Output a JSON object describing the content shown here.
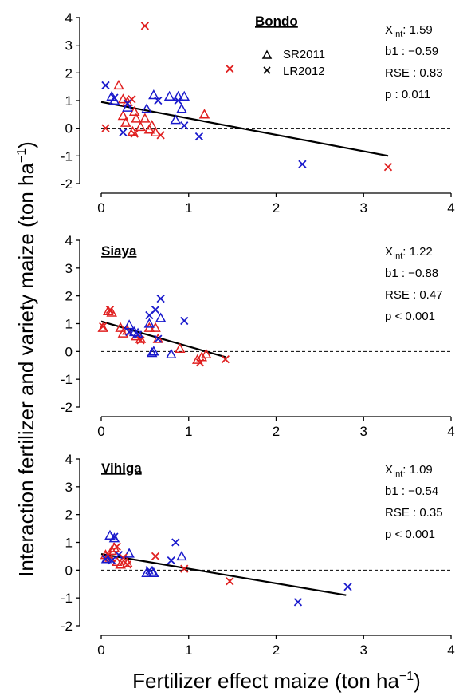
{
  "figure": {
    "xlabel_main": "Fertilizer effect maize (ton ha",
    "xlabel_sup": "−1",
    "xlabel_end": ")",
    "ylabel_main": "Interaction fertilizer and variety maize (ton ha",
    "ylabel_sup": "−1",
    "ylabel_end": ")"
  },
  "legend": {
    "entries": [
      {
        "label": "SR2011",
        "marker": "triangle"
      },
      {
        "label": "LR2012",
        "marker": "cross"
      }
    ]
  },
  "colors": {
    "series_a": "#e02020",
    "series_b": "#1a1acc",
    "axis": "#000000"
  },
  "chart_data": [
    {
      "type": "scatter",
      "site": "Bondo",
      "stats": {
        "xint_sym": "X",
        "xint_sub": "Int",
        "xint_val": ": 1.59",
        "b1": "b1 : −0.59",
        "rse": "RSE : 0.83",
        "p": "p : 0.011"
      },
      "xlim": [
        0,
        4
      ],
      "ylim": [
        -2,
        4
      ],
      "xticks": [
        0,
        1,
        2,
        3,
        4
      ],
      "yticks": [
        -2,
        -1,
        0,
        1,
        2,
        3,
        4
      ],
      "fit": {
        "x": [
          0,
          3.28
        ],
        "y": [
          0.95,
          -1.0
        ]
      },
      "points": [
        {
          "x": 0.2,
          "y": 1.55,
          "m": "t",
          "c": "r"
        },
        {
          "x": 0.25,
          "y": 1.05,
          "m": "t",
          "c": "r"
        },
        {
          "x": 0.3,
          "y": 0.95,
          "m": "t",
          "c": "r"
        },
        {
          "x": 0.25,
          "y": 0.45,
          "m": "t",
          "c": "r"
        },
        {
          "x": 0.28,
          "y": 0.2,
          "m": "t",
          "c": "r"
        },
        {
          "x": 0.38,
          "y": 0.6,
          "m": "t",
          "c": "r"
        },
        {
          "x": 0.4,
          "y": 0.35,
          "m": "t",
          "c": "r"
        },
        {
          "x": 0.45,
          "y": 0.05,
          "m": "t",
          "c": "r"
        },
        {
          "x": 0.5,
          "y": 0.35,
          "m": "t",
          "c": "r"
        },
        {
          "x": 0.55,
          "y": -0.05,
          "m": "t",
          "c": "r"
        },
        {
          "x": 0.62,
          "y": -0.15,
          "m": "t",
          "c": "r"
        },
        {
          "x": 0.58,
          "y": 0.1,
          "m": "t",
          "c": "r"
        },
        {
          "x": 1.18,
          "y": 0.5,
          "m": "t",
          "c": "r"
        },
        {
          "x": 0.36,
          "y": -0.12,
          "m": "t",
          "c": "r"
        },
        {
          "x": 0.12,
          "y": 1.15,
          "m": "t",
          "c": "b"
        },
        {
          "x": 0.15,
          "y": 1.0,
          "m": "t",
          "c": "b"
        },
        {
          "x": 0.3,
          "y": 0.75,
          "m": "t",
          "c": "b"
        },
        {
          "x": 0.52,
          "y": 0.7,
          "m": "t",
          "c": "b"
        },
        {
          "x": 0.6,
          "y": 1.2,
          "m": "t",
          "c": "b"
        },
        {
          "x": 0.78,
          "y": 1.15,
          "m": "t",
          "c": "b"
        },
        {
          "x": 0.88,
          "y": 1.15,
          "m": "t",
          "c": "b"
        },
        {
          "x": 0.92,
          "y": 0.7,
          "m": "t",
          "c": "b"
        },
        {
          "x": 0.85,
          "y": 0.3,
          "m": "t",
          "c": "b"
        },
        {
          "x": 0.95,
          "y": 1.15,
          "m": "t",
          "c": "b"
        },
        {
          "x": 0.5,
          "y": 3.7,
          "m": "x",
          "c": "r"
        },
        {
          "x": 1.47,
          "y": 2.15,
          "m": "x",
          "c": "r"
        },
        {
          "x": 0.05,
          "y": 0.0,
          "m": "x",
          "c": "r"
        },
        {
          "x": 0.35,
          "y": 1.05,
          "m": "x",
          "c": "r"
        },
        {
          "x": 0.38,
          "y": -0.2,
          "m": "x",
          "c": "r"
        },
        {
          "x": 0.68,
          "y": -0.25,
          "m": "x",
          "c": "r"
        },
        {
          "x": 3.28,
          "y": -1.4,
          "m": "x",
          "c": "r"
        },
        {
          "x": 0.05,
          "y": 1.55,
          "m": "x",
          "c": "b"
        },
        {
          "x": 0.15,
          "y": 1.1,
          "m": "x",
          "c": "b"
        },
        {
          "x": 0.25,
          "y": -0.15,
          "m": "x",
          "c": "b"
        },
        {
          "x": 0.3,
          "y": 0.9,
          "m": "x",
          "c": "b"
        },
        {
          "x": 0.65,
          "y": 1.0,
          "m": "x",
          "c": "b"
        },
        {
          "x": 0.88,
          "y": 1.0,
          "m": "x",
          "c": "b"
        },
        {
          "x": 0.95,
          "y": 0.1,
          "m": "x",
          "c": "b"
        },
        {
          "x": 1.12,
          "y": -0.3,
          "m": "x",
          "c": "b"
        },
        {
          "x": 2.3,
          "y": -1.3,
          "m": "x",
          "c": "b"
        }
      ]
    },
    {
      "type": "scatter",
      "site": "Siaya",
      "stats": {
        "xint_sym": "X",
        "xint_sub": "Int",
        "xint_val": ": 1.22",
        "b1": "b1 : −0.88",
        "rse": "RSE : 0.47",
        "p": "p < 0.001"
      },
      "xlim": [
        0,
        4
      ],
      "ylim": [
        -2,
        4
      ],
      "xticks": [
        0,
        1,
        2,
        3,
        4
      ],
      "yticks": [
        -2,
        -1,
        0,
        1,
        2,
        3,
        4
      ],
      "fit": {
        "x": [
          0,
          1.42
        ],
        "y": [
          1.08,
          -0.2
        ]
      },
      "points": [
        {
          "x": 0.02,
          "y": 0.85,
          "m": "t",
          "c": "r"
        },
        {
          "x": 0.08,
          "y": 1.45,
          "m": "t",
          "c": "r"
        },
        {
          "x": 0.12,
          "y": 1.4,
          "m": "t",
          "c": "r"
        },
        {
          "x": 0.22,
          "y": 0.85,
          "m": "t",
          "c": "r"
        },
        {
          "x": 0.25,
          "y": 0.65,
          "m": "t",
          "c": "r"
        },
        {
          "x": 0.3,
          "y": 0.75,
          "m": "t",
          "c": "r"
        },
        {
          "x": 0.4,
          "y": 0.55,
          "m": "t",
          "c": "r"
        },
        {
          "x": 0.45,
          "y": 0.45,
          "m": "t",
          "c": "r"
        },
        {
          "x": 0.55,
          "y": 0.85,
          "m": "t",
          "c": "r"
        },
        {
          "x": 0.62,
          "y": 0.85,
          "m": "t",
          "c": "r"
        },
        {
          "x": 0.65,
          "y": 0.45,
          "m": "t",
          "c": "r"
        },
        {
          "x": 0.9,
          "y": 0.1,
          "m": "t",
          "c": "r"
        },
        {
          "x": 1.1,
          "y": -0.3,
          "m": "t",
          "c": "r"
        },
        {
          "x": 1.15,
          "y": -0.2,
          "m": "t",
          "c": "r"
        },
        {
          "x": 1.2,
          "y": -0.1,
          "m": "t",
          "c": "r"
        },
        {
          "x": 0.32,
          "y": 0.95,
          "m": "t",
          "c": "b"
        },
        {
          "x": 0.38,
          "y": 0.7,
          "m": "t",
          "c": "b"
        },
        {
          "x": 0.42,
          "y": 0.65,
          "m": "t",
          "c": "b"
        },
        {
          "x": 0.55,
          "y": 1.0,
          "m": "t",
          "c": "b"
        },
        {
          "x": 0.6,
          "y": 0.0,
          "m": "t",
          "c": "b"
        },
        {
          "x": 0.68,
          "y": 1.2,
          "m": "t",
          "c": "b"
        },
        {
          "x": 0.8,
          "y": -0.1,
          "m": "t",
          "c": "b"
        },
        {
          "x": 0.58,
          "y": -0.05,
          "m": "t",
          "c": "b"
        },
        {
          "x": 0.02,
          "y": 0.9,
          "m": "x",
          "c": "r"
        },
        {
          "x": 0.1,
          "y": 1.5,
          "m": "x",
          "c": "r"
        },
        {
          "x": 0.45,
          "y": 0.4,
          "m": "x",
          "c": "r"
        },
        {
          "x": 1.13,
          "y": -0.4,
          "m": "x",
          "c": "r"
        },
        {
          "x": 1.42,
          "y": -0.28,
          "m": "x",
          "c": "r"
        },
        {
          "x": 0.32,
          "y": 0.7,
          "m": "x",
          "c": "b"
        },
        {
          "x": 0.42,
          "y": 0.6,
          "m": "x",
          "c": "b"
        },
        {
          "x": 0.55,
          "y": 1.3,
          "m": "x",
          "c": "b"
        },
        {
          "x": 0.62,
          "y": 1.5,
          "m": "x",
          "c": "b"
        },
        {
          "x": 0.68,
          "y": 1.9,
          "m": "x",
          "c": "b"
        },
        {
          "x": 0.95,
          "y": 1.1,
          "m": "x",
          "c": "b"
        },
        {
          "x": 0.65,
          "y": 0.45,
          "m": "x",
          "c": "b"
        }
      ]
    },
    {
      "type": "scatter",
      "site": "Vihiga",
      "stats": {
        "xint_sym": "X",
        "xint_sub": "Int",
        "xint_val": ": 1.09",
        "b1": "b1 : −0.54",
        "rse": "RSE : 0.35",
        "p": "p < 0.001"
      },
      "xlim": [
        0,
        4
      ],
      "ylim": [
        -2,
        4
      ],
      "xticks": [
        0,
        1,
        2,
        3,
        4
      ],
      "yticks": [
        -2,
        -1,
        0,
        1,
        2,
        3,
        4
      ],
      "fit": {
        "x": [
          0,
          2.8
        ],
        "y": [
          0.58,
          -0.9
        ]
      },
      "points": [
        {
          "x": 0.05,
          "y": 0.55,
          "m": "t",
          "c": "r"
        },
        {
          "x": 0.1,
          "y": 0.45,
          "m": "t",
          "c": "r"
        },
        {
          "x": 0.12,
          "y": 0.7,
          "m": "t",
          "c": "r"
        },
        {
          "x": 0.15,
          "y": 0.8,
          "m": "t",
          "c": "r"
        },
        {
          "x": 0.18,
          "y": 0.3,
          "m": "t",
          "c": "r"
        },
        {
          "x": 0.22,
          "y": 0.2,
          "m": "t",
          "c": "r"
        },
        {
          "x": 0.28,
          "y": 0.35,
          "m": "t",
          "c": "r"
        },
        {
          "x": 0.3,
          "y": 0.25,
          "m": "t",
          "c": "r"
        },
        {
          "x": 0.1,
          "y": 1.25,
          "m": "t",
          "c": "b"
        },
        {
          "x": 0.15,
          "y": 1.15,
          "m": "t",
          "c": "b"
        },
        {
          "x": 0.32,
          "y": 0.6,
          "m": "t",
          "c": "b"
        },
        {
          "x": 0.52,
          "y": -0.1,
          "m": "t",
          "c": "b"
        },
        {
          "x": 0.58,
          "y": -0.05,
          "m": "t",
          "c": "b"
        },
        {
          "x": 0.6,
          "y": -0.1,
          "m": "t",
          "c": "b"
        },
        {
          "x": 0.92,
          "y": 0.5,
          "m": "t",
          "c": "b"
        },
        {
          "x": 0.06,
          "y": 0.4,
          "m": "t",
          "c": "b"
        },
        {
          "x": 0.08,
          "y": 0.55,
          "m": "x",
          "c": "r"
        },
        {
          "x": 0.18,
          "y": 0.85,
          "m": "x",
          "c": "r"
        },
        {
          "x": 0.25,
          "y": 0.45,
          "m": "x",
          "c": "r"
        },
        {
          "x": 0.3,
          "y": 0.2,
          "m": "x",
          "c": "r"
        },
        {
          "x": 0.62,
          "y": 0.5,
          "m": "x",
          "c": "r"
        },
        {
          "x": 0.95,
          "y": 0.05,
          "m": "x",
          "c": "r"
        },
        {
          "x": 1.47,
          "y": -0.4,
          "m": "x",
          "c": "r"
        },
        {
          "x": 0.05,
          "y": 0.4,
          "m": "x",
          "c": "b"
        },
        {
          "x": 0.12,
          "y": 0.35,
          "m": "x",
          "c": "b"
        },
        {
          "x": 0.15,
          "y": 1.2,
          "m": "x",
          "c": "b"
        },
        {
          "x": 0.2,
          "y": 0.55,
          "m": "x",
          "c": "b"
        },
        {
          "x": 0.55,
          "y": 0.0,
          "m": "x",
          "c": "b"
        },
        {
          "x": 0.8,
          "y": 0.35,
          "m": "x",
          "c": "b"
        },
        {
          "x": 0.85,
          "y": 1.0,
          "m": "x",
          "c": "b"
        },
        {
          "x": 2.25,
          "y": -1.15,
          "m": "x",
          "c": "b"
        },
        {
          "x": 2.82,
          "y": -0.6,
          "m": "x",
          "c": "b"
        }
      ]
    }
  ]
}
